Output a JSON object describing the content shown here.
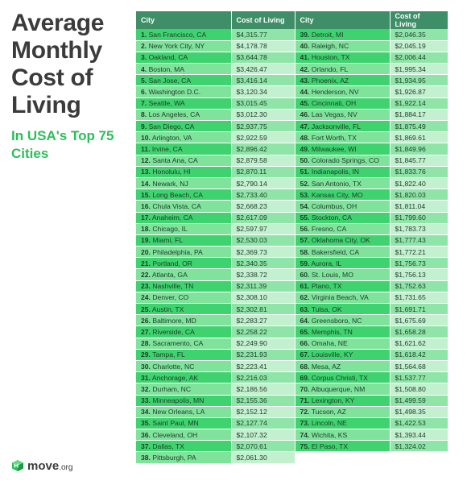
{
  "title": "Average Monthly Cost of Living",
  "subtitle": "In USA's Top 75 Cities",
  "logo": {
    "brand": "move",
    "tld": ".org"
  },
  "columns": {
    "city": "City",
    "cost": "Cost of Living"
  },
  "left": [
    {
      "rank": "1.",
      "city": "San Francisco, CA",
      "cost": "$4,315.77"
    },
    {
      "rank": "2.",
      "city": "New York City, NY",
      "cost": "$4,178.78"
    },
    {
      "rank": "3.",
      "city": "Oakland, CA",
      "cost": "$3,644.78"
    },
    {
      "rank": "4.",
      "city": "Boston, MA",
      "cost": "$3,426.47"
    },
    {
      "rank": "5.",
      "city": "San Jose, CA",
      "cost": "$3,416.14"
    },
    {
      "rank": "6.",
      "city": "Washington D.C.",
      "cost": "$3,120.34"
    },
    {
      "rank": "7.",
      "city": "Seattle, WA",
      "cost": "$3,015.45"
    },
    {
      "rank": "8.",
      "city": "Los Angeles, CA",
      "cost": "$3,012.30"
    },
    {
      "rank": "9.",
      "city": "San Diego, CA",
      "cost": "$2,937.75"
    },
    {
      "rank": "10.",
      "city": "Arlington, VA",
      "cost": "$2,922.59"
    },
    {
      "rank": "11.",
      "city": "Irvine, CA",
      "cost": "$2,896.42"
    },
    {
      "rank": "12.",
      "city": "Santa Ana, CA",
      "cost": "$2,879.58"
    },
    {
      "rank": "13.",
      "city": "Honolulu, HI",
      "cost": "$2,870.11"
    },
    {
      "rank": "14.",
      "city": "Newark, NJ",
      "cost": "$2,790.14"
    },
    {
      "rank": "15.",
      "city": "Long Beach, CA",
      "cost": "$2,733.40"
    },
    {
      "rank": "16.",
      "city": "Chula Vista, CA",
      "cost": "$2,668.23"
    },
    {
      "rank": "17.",
      "city": "Anaheim, CA",
      "cost": "$2,617.09"
    },
    {
      "rank": "18.",
      "city": "Chicago, IL",
      "cost": "$2,597.97"
    },
    {
      "rank": "19.",
      "city": "Miami, FL",
      "cost": "$2,530.03"
    },
    {
      "rank": "20.",
      "city": "Philadelphia, PA",
      "cost": "$2,369.73"
    },
    {
      "rank": "21.",
      "city": "Portland, OR",
      "cost": "$2,340.35"
    },
    {
      "rank": "22.",
      "city": "Atlanta, GA",
      "cost": "$2,338.72"
    },
    {
      "rank": "23.",
      "city": "Nashville, TN",
      "cost": "$2,311.39"
    },
    {
      "rank": "24.",
      "city": "Denver, CO",
      "cost": "$2,308.10"
    },
    {
      "rank": "25.",
      "city": "Austin, TX",
      "cost": "$2,302.81"
    },
    {
      "rank": "26.",
      "city": "Baltimore, MD",
      "cost": "$2,283.27"
    },
    {
      "rank": "27.",
      "city": "Riverside, CA",
      "cost": "$2,258.22"
    },
    {
      "rank": "28.",
      "city": "Sacramento, CA",
      "cost": "$2,249.90"
    },
    {
      "rank": "29.",
      "city": "Tampa, FL",
      "cost": "$2,231.93"
    },
    {
      "rank": "30.",
      "city": "Charlotte, NC",
      "cost": "$2,223.41"
    },
    {
      "rank": "31.",
      "city": "Anchorage, AK",
      "cost": "$2,216.03"
    },
    {
      "rank": "32.",
      "city": "Durham, NC",
      "cost": "$2,186.56"
    },
    {
      "rank": "33.",
      "city": "Minneapolis, MN",
      "cost": "$2,155.36"
    },
    {
      "rank": "34.",
      "city": "New Orleans, LA",
      "cost": "$2,152.12"
    },
    {
      "rank": "35.",
      "city": "Saint Paul, MN",
      "cost": "$2,127.74"
    },
    {
      "rank": "36.",
      "city": "Cleveland, OH",
      "cost": "$2,107.32"
    },
    {
      "rank": "37.",
      "city": "Dallas, TX",
      "cost": "$2,070.61"
    },
    {
      "rank": "38.",
      "city": "Pittsburgh, PA",
      "cost": "$2,061.30"
    }
  ],
  "right": [
    {
      "rank": "39.",
      "city": "Detroit, MI",
      "cost": "$2,046.35"
    },
    {
      "rank": "40.",
      "city": "Raleigh, NC",
      "cost": "$2,045.19"
    },
    {
      "rank": "41.",
      "city": "Houston, TX",
      "cost": "$2,006.44"
    },
    {
      "rank": "42.",
      "city": "Orlando, FL",
      "cost": "$1,995.34"
    },
    {
      "rank": "43.",
      "city": "Phoenix, AZ",
      "cost": "$1,934.95"
    },
    {
      "rank": "44.",
      "city": "Henderson, NV",
      "cost": "$1,926.87"
    },
    {
      "rank": "45.",
      "city": "Cincinnati, OH",
      "cost": "$1,922.14"
    },
    {
      "rank": "46.",
      "city": "Las Vegas, NV",
      "cost": "$1,884.17"
    },
    {
      "rank": "47.",
      "city": "Jacksonville, FL",
      "cost": "$1,875.49"
    },
    {
      "rank": "48.",
      "city": "Fort Worth, TX",
      "cost": "$1,869.61"
    },
    {
      "rank": "49.",
      "city": "Milwaukee, WI",
      "cost": "$1,849.96"
    },
    {
      "rank": "50.",
      "city": "Colorado Springs, CO",
      "cost": "$1,845.77"
    },
    {
      "rank": "51.",
      "city": "Indianapolis, IN",
      "cost": "$1,833.76"
    },
    {
      "rank": "52.",
      "city": "San Antonio, TX",
      "cost": "$1,822.40"
    },
    {
      "rank": "53.",
      "city": "Kansas City, MO",
      "cost": "$1,820.03"
    },
    {
      "rank": "54.",
      "city": "Columbus, OH",
      "cost": "$1,811.04"
    },
    {
      "rank": "55.",
      "city": "Stockton, CA",
      "cost": "$1,799.60"
    },
    {
      "rank": "56.",
      "city": "Fresno, CA",
      "cost": "$1,783.73"
    },
    {
      "rank": "57.",
      "city": "Oklahoma City, OK",
      "cost": "$1,777.43"
    },
    {
      "rank": "58.",
      "city": "Bakersfield, CA",
      "cost": "$1,772.21"
    },
    {
      "rank": "59.",
      "city": "Aurora, IL",
      "cost": "$1,756.73"
    },
    {
      "rank": "60.",
      "city": "St. Louis, MO",
      "cost": "$1,756.13"
    },
    {
      "rank": "61.",
      "city": "Plano, TX",
      "cost": "$1,752.63"
    },
    {
      "rank": "62.",
      "city": "Virginia Beach, VA",
      "cost": "$1,731.65"
    },
    {
      "rank": "63.",
      "city": "Tulsa, OK",
      "cost": "$1,691.71"
    },
    {
      "rank": "64.",
      "city": "Greensboro, NC",
      "cost": "$1,675.69"
    },
    {
      "rank": "65.",
      "city": "Memphis, TN",
      "cost": "$1,658.28"
    },
    {
      "rank": "66.",
      "city": "Omaha, NE",
      "cost": "$1,621.62"
    },
    {
      "rank": "67.",
      "city": "Louisville, KY",
      "cost": "$1,618.42"
    },
    {
      "rank": "68.",
      "city": "Mesa, AZ",
      "cost": "$1,564.68"
    },
    {
      "rank": "69.",
      "city": "Corpus Christi, TX",
      "cost": "$1,537.77"
    },
    {
      "rank": "70.",
      "city": "Albuquerque, NM",
      "cost": "$1,508.80"
    },
    {
      "rank": "71.",
      "city": "Lexington, KY",
      "cost": "$1,499.59"
    },
    {
      "rank": "72.",
      "city": "Tucson, AZ",
      "cost": "$1,498.35"
    },
    {
      "rank": "73.",
      "city": "Lincoln, NE",
      "cost": "$1,422.53"
    },
    {
      "rank": "74.",
      "city": "Wichita, KS",
      "cost": "$1,393.44"
    },
    {
      "rank": "75.",
      "city": "El Paso, TX",
      "cost": "$1,324.02"
    }
  ],
  "colors": {
    "header": "#3e8f67",
    "city_dark": "#3ed36e",
    "cost_dark": "#8fe5a8",
    "city_light": "#7fe39c",
    "cost_light": "#c3f0cf",
    "title": "#3b3b3b",
    "subtitle": "#2bbf5a"
  },
  "icons": {
    "logo": "move-cube-icon"
  }
}
